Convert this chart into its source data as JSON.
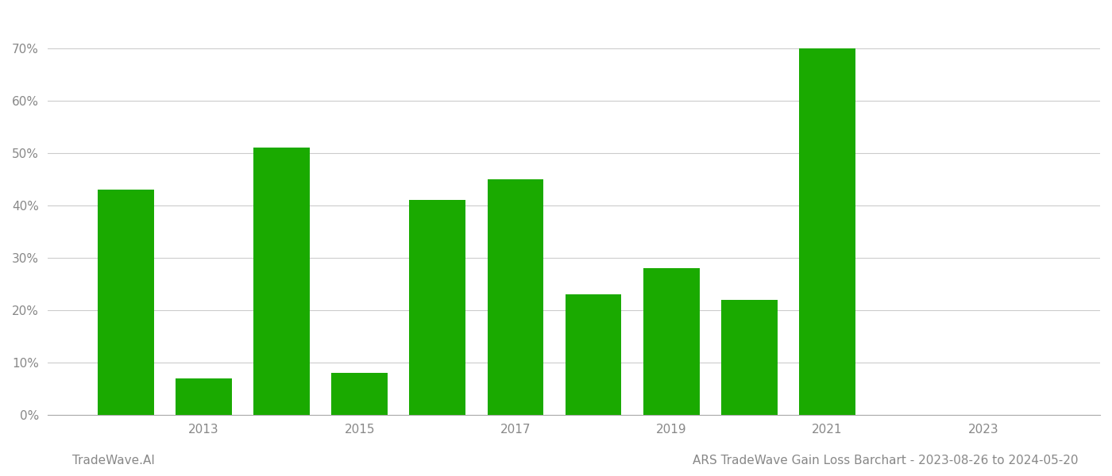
{
  "bar_years": [
    2012,
    2013,
    2014,
    2015,
    2016,
    2017,
    2018,
    2019,
    2020,
    2021,
    2022
  ],
  "bar_values": [
    0.43,
    0.07,
    0.51,
    0.08,
    0.41,
    0.45,
    0.23,
    0.28,
    0.22,
    0.7,
    0.0
  ],
  "bar_color": "#1aaa00",
  "background_color": "#ffffff",
  "grid_color": "#cccccc",
  "axis_label_color": "#888888",
  "ytick_labels": [
    "0%",
    "10%",
    "20%",
    "30%",
    "40%",
    "50%",
    "60%",
    "70%"
  ],
  "ytick_values": [
    0.0,
    0.1,
    0.2,
    0.3,
    0.4,
    0.5,
    0.6,
    0.7
  ],
  "xtick_labels": [
    "2013",
    "2015",
    "2017",
    "2019",
    "2021",
    "2023"
  ],
  "xtick_positions": [
    2013,
    2015,
    2017,
    2019,
    2021,
    2023
  ],
  "ylim": [
    0,
    0.76
  ],
  "xlim": [
    2011.0,
    2024.5
  ],
  "title": "ARS TradeWave Gain Loss Barchart - 2023-08-26 to 2024-05-20",
  "footer_left": "TradeWave.AI",
  "footer_fontsize": 11,
  "title_fontsize": 11,
  "bar_width": 0.72
}
